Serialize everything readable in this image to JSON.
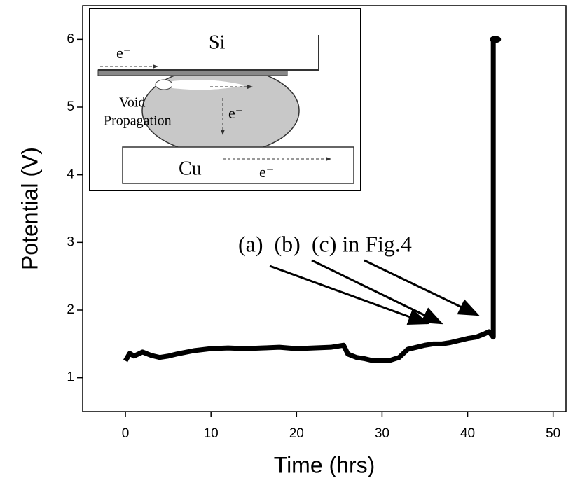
{
  "chart_data": {
    "type": "line",
    "x_label": "Time (hrs)",
    "y_label": "Potential (V)",
    "x": [
      0,
      0.5,
      1,
      2,
      3,
      4,
      5,
      6,
      8,
      10,
      12,
      14,
      16,
      18,
      20,
      22,
      24,
      25.5,
      26,
      27,
      28,
      29,
      30,
      31,
      32,
      33,
      34,
      35,
      36,
      37,
      38,
      39,
      40,
      41,
      42,
      42.5,
      43,
      43
    ],
    "values": [
      1.25,
      1.36,
      1.32,
      1.38,
      1.33,
      1.3,
      1.32,
      1.35,
      1.4,
      1.43,
      1.44,
      1.43,
      1.44,
      1.45,
      1.43,
      1.44,
      1.45,
      1.48,
      1.35,
      1.3,
      1.28,
      1.25,
      1.25,
      1.26,
      1.3,
      1.42,
      1.45,
      1.48,
      1.5,
      1.5,
      1.52,
      1.55,
      1.58,
      1.6,
      1.65,
      1.68,
      1.6,
      6.0
    ],
    "color": "#000000",
    "xlim": [
      -5,
      51.5
    ],
    "ylim": [
      0.5,
      6.5
    ],
    "xticks": [
      0,
      10,
      20,
      30,
      40,
      50
    ],
    "yticks": [
      1,
      2,
      3,
      4,
      5,
      6
    ],
    "annotation": "(a)  (b)  (c) in Fig.4",
    "inset": {
      "top": "Si",
      "bottom": "Cu",
      "void": "Void",
      "propagation": "Propagation",
      "electron": [
        "e⁻",
        "e⁻",
        "e⁻"
      ]
    }
  }
}
